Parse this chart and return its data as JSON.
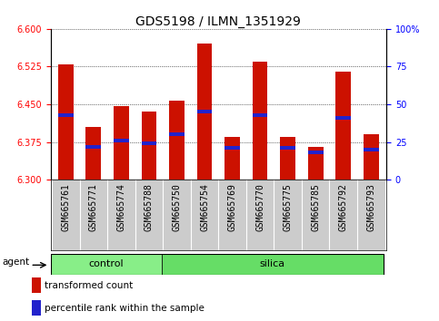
{
  "title": "GDS5198 / ILMN_1351929",
  "samples": [
    "GSM665761",
    "GSM665771",
    "GSM665774",
    "GSM665788",
    "GSM665750",
    "GSM665754",
    "GSM665769",
    "GSM665770",
    "GSM665775",
    "GSM665785",
    "GSM665792",
    "GSM665793"
  ],
  "groups": [
    "control",
    "control",
    "control",
    "control",
    "silica",
    "silica",
    "silica",
    "silica",
    "silica",
    "silica",
    "silica",
    "silica"
  ],
  "bar_bottom": 6.3,
  "bar_tops": [
    6.53,
    6.405,
    6.447,
    6.435,
    6.457,
    6.57,
    6.385,
    6.535,
    6.385,
    6.365,
    6.515,
    6.39
  ],
  "percentile_values": [
    43,
    22,
    26,
    24,
    30,
    45,
    21,
    43,
    21,
    18,
    41,
    20
  ],
  "ylim_left": [
    6.3,
    6.6
  ],
  "ylim_right": [
    0,
    100
  ],
  "yticks_left": [
    6.3,
    6.375,
    6.45,
    6.525,
    6.6
  ],
  "yticks_right": [
    0,
    25,
    50,
    75,
    100
  ],
  "bar_color": "#cc1100",
  "blue_color": "#2222cc",
  "control_color": "#88ee88",
  "silica_color": "#66dd66",
  "xtick_bg": "#cccccc",
  "agent_label": "agent",
  "legend_red": "transformed count",
  "legend_blue": "percentile rank within the sample",
  "title_fontsize": 10,
  "tick_fontsize": 7,
  "label_fontsize": 7.5,
  "group_fontsize": 8
}
